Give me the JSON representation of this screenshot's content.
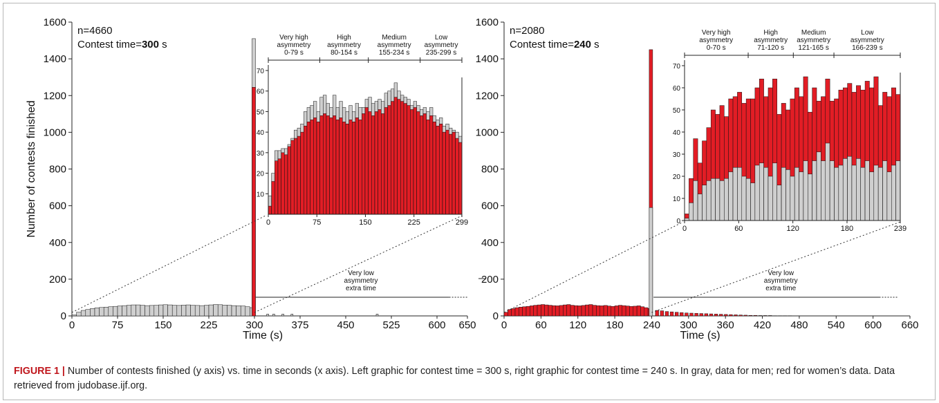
{
  "caption": {
    "label": "FIGURE 1 |",
    "text": "Number of contests finished (y axis) vs. time in seconds (x axis). Left graphic for contest time = 300 s, right graphic for contest time = 240 s. In gray, data for men; red for women’s data. Data retrieved from judobase.ijf.org."
  },
  "colors": {
    "men": "#cfcfcf",
    "women": "#e21d25",
    "axis": "#222222"
  },
  "chart_data": [
    {
      "type": "bar",
      "panel": "left",
      "annotation_n": "n=4660",
      "contest_time_prefix": "Contest time=",
      "contest_time_value": "300",
      "contest_time_unit": " s",
      "xlabel": "Time (s)",
      "ylabel": "Number of contests finished",
      "xlim": [
        0,
        650
      ],
      "ylim": [
        0,
        1600
      ],
      "x_ticks": [
        "0",
        "75",
        "150",
        "225",
        "300",
        "375",
        "450",
        "525",
        "600",
        "650"
      ],
      "y_ticks": [
        "0",
        "200",
        "400",
        "600",
        "800",
        "1000",
        "1200",
        "1400",
        "1600"
      ],
      "series": [
        {
          "name": "men (gray)",
          "values_0_299": [
            5,
            20,
            30,
            35,
            40,
            44,
            46,
            48,
            50,
            52,
            54,
            56,
            58,
            60,
            60,
            58,
            56,
            57,
            58,
            60,
            61,
            60,
            58,
            57,
            59,
            60,
            58,
            57,
            56,
            58,
            60,
            62,
            61,
            59,
            58,
            56,
            55,
            54,
            50,
            45
          ],
          "peak_300": 1510,
          "extra_time": 10
        },
        {
          "name": "women (red)",
          "peak_300": 1245
        }
      ],
      "extra_time_label": [
        "Very low",
        "asymmetry",
        "extra time"
      ],
      "inset": {
        "xlim": [
          0,
          299
        ],
        "ylim": [
          0,
          70
        ],
        "x_ticks": [
          "0",
          "75",
          "150",
          "225",
          "299"
        ],
        "y_ticks": [
          "10",
          "20",
          "30",
          "40",
          "50",
          "60",
          "70"
        ],
        "zones": [
          {
            "label": [
              "Very high",
              "asymmetry",
              "0-79 s"
            ],
            "from": 0,
            "to": 79
          },
          {
            "label": [
              "High",
              "asymmetry",
              "80-154 s"
            ],
            "from": 80,
            "to": 154
          },
          {
            "label": [
              "Medium",
              "asymmetry",
              "155-234 s"
            ],
            "from": 155,
            "to": 234
          },
          {
            "label": [
              "Low",
              "asymmetry",
              "235-299 s"
            ],
            "from": 235,
            "to": 299
          }
        ],
        "bin_width": 5,
        "red": [
          4,
          16,
          26,
          27,
          30,
          29,
          33,
          36,
          37,
          38,
          40,
          43,
          45,
          46,
          47,
          45,
          48,
          49,
          48,
          47,
          48,
          46,
          47,
          45,
          44,
          46,
          45,
          47,
          46,
          49,
          52,
          50,
          48,
          50,
          51,
          49,
          52,
          53,
          55,
          57,
          56,
          55,
          54,
          53,
          51,
          52,
          50,
          48,
          49,
          46,
          48,
          45,
          43,
          44,
          40,
          41,
          39,
          40,
          37,
          35
        ],
        "gray": [
          9,
          20,
          31,
          31,
          32,
          32,
          34,
          37,
          41,
          42,
          44,
          50,
          52,
          53,
          55,
          50,
          57,
          58,
          54,
          52,
          58,
          52,
          55,
          52,
          50,
          53,
          50,
          54,
          52,
          52,
          56,
          57,
          54,
          55,
          56,
          55,
          59,
          60,
          61,
          64,
          60,
          58,
          57,
          56,
          53,
          55,
          53,
          51,
          52,
          50,
          52,
          48,
          46,
          47,
          43,
          44,
          42,
          41,
          40,
          38
        ]
      }
    },
    {
      "type": "bar",
      "panel": "right",
      "annotation_n": "n=2080",
      "contest_time_prefix": "Contest time=",
      "contest_time_value": "240",
      "contest_time_unit": " s",
      "xlabel": "Time (s)",
      "xlim": [
        0,
        660
      ],
      "ylim": [
        0,
        1600
      ],
      "x_ticks": [
        "0",
        "60",
        "120",
        "180",
        "240",
        "300",
        "360",
        "420",
        "480",
        "540",
        "600",
        "660"
      ],
      "y_ticks": [
        "0",
        "200",
        "400",
        "600",
        "800",
        "1000",
        "1200",
        "1400",
        "1600"
      ],
      "series": [
        {
          "name": "women (red)",
          "values_0_239": [
            20,
            35,
            40,
            45,
            48,
            50,
            52,
            55,
            58,
            60,
            62,
            60,
            58,
            56,
            55,
            57,
            60,
            62,
            58,
            56,
            55,
            57,
            60,
            62,
            58,
            56,
            55,
            57,
            54,
            52,
            55,
            58,
            56,
            54,
            52,
            53,
            55,
            50,
            45,
            40
          ],
          "peak_240": 1450,
          "extra_time": [
            30,
            28,
            24,
            22,
            20,
            18,
            16,
            15,
            14,
            13,
            12,
            11,
            10,
            9,
            8,
            7,
            6,
            5,
            4,
            3,
            3,
            2,
            2,
            2,
            1,
            1,
            1,
            1
          ]
        },
        {
          "name": "men (gray)",
          "peak_240": 590
        }
      ],
      "extra_time_label": [
        "Very low",
        "asymmetry",
        "extra time"
      ],
      "inset": {
        "xlim": [
          0,
          239
        ],
        "ylim": [
          0,
          70
        ],
        "x_ticks": [
          "0",
          "60",
          "120",
          "180",
          "239"
        ],
        "y_ticks": [
          "0",
          "10",
          "20",
          "30",
          "40",
          "50",
          "60",
          "70"
        ],
        "zones": [
          {
            "label": [
              "Very high",
              "asymmetry",
              "0-70 s"
            ],
            "from": 0,
            "to": 70
          },
          {
            "label": [
              "High",
              "asymmetry",
              "71-120 s"
            ],
            "from": 71,
            "to": 120
          },
          {
            "label": [
              "Medium",
              "asymmetry",
              "121-165 s"
            ],
            "from": 121,
            "to": 165
          },
          {
            "label": [
              "Low",
              "asymmetry",
              "166-239 s"
            ],
            "from": 166,
            "to": 239
          }
        ],
        "bin_width": 5,
        "red": [
          3,
          19,
          37,
          26,
          36,
          42,
          50,
          48,
          52,
          47,
          55,
          56,
          58,
          53,
          55,
          55,
          60,
          64,
          56,
          60,
          64,
          48,
          53,
          50,
          55,
          60,
          56,
          65,
          49,
          60,
          54,
          56,
          64,
          54,
          55,
          59,
          60,
          62,
          58,
          61,
          59,
          63,
          60,
          65,
          52,
          58,
          56,
          60,
          57
        ],
        "gray": [
          1,
          8,
          18,
          12,
          16,
          18,
          19,
          19,
          18,
          19,
          22,
          24,
          24,
          20,
          19,
          17,
          25,
          26,
          24,
          20,
          26,
          16,
          24,
          23,
          20,
          24,
          22,
          27,
          21,
          27,
          31,
          27,
          35,
          27,
          24,
          25,
          28,
          29,
          25,
          28,
          24,
          27,
          22,
          25,
          24,
          27,
          22,
          25,
          27
        ]
      }
    }
  ]
}
